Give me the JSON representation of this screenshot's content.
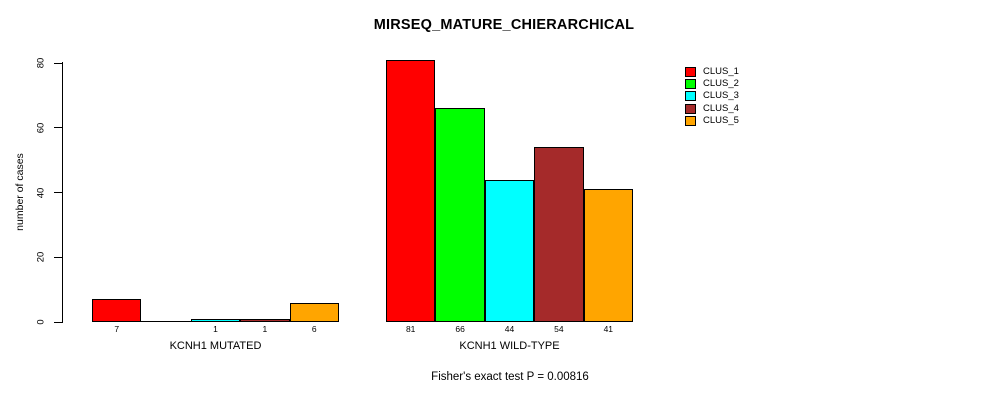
{
  "chart_data": {
    "type": "bar",
    "title": "MIRSEQ_MATURE_CHIERARCHICAL",
    "ylabel": "number of cases",
    "xlabel_groups": [
      "KCNH1 MUTATED",
      "KCNH1 WILD-TYPE"
    ],
    "ylim": [
      0,
      80
    ],
    "yticks": [
      0,
      20,
      40,
      60,
      80
    ],
    "grid": false,
    "legend_position": "top-right",
    "legend": [
      {
        "name": "CLUS_1",
        "color": "#FF0000"
      },
      {
        "name": "CLUS_2",
        "color": "#00FF00"
      },
      {
        "name": "CLUS_3",
        "color": "#00FFFF"
      },
      {
        "name": "CLUS_4",
        "color": "#A52A2A"
      },
      {
        "name": "CLUS_5",
        "color": "#FFA500"
      }
    ],
    "groups": [
      {
        "label": "KCNH1 MUTATED",
        "values": [
          7,
          0,
          1,
          1,
          6
        ],
        "bar_labels": [
          "7",
          "",
          "1",
          "1",
          "6"
        ]
      },
      {
        "label": "KCNH1 WILD-TYPE",
        "values": [
          81,
          66,
          44,
          54,
          41
        ],
        "bar_labels": [
          "81",
          "66",
          "44",
          "54",
          "41"
        ]
      }
    ],
    "annotation": "Fisher's exact test P = 0.00816"
  }
}
